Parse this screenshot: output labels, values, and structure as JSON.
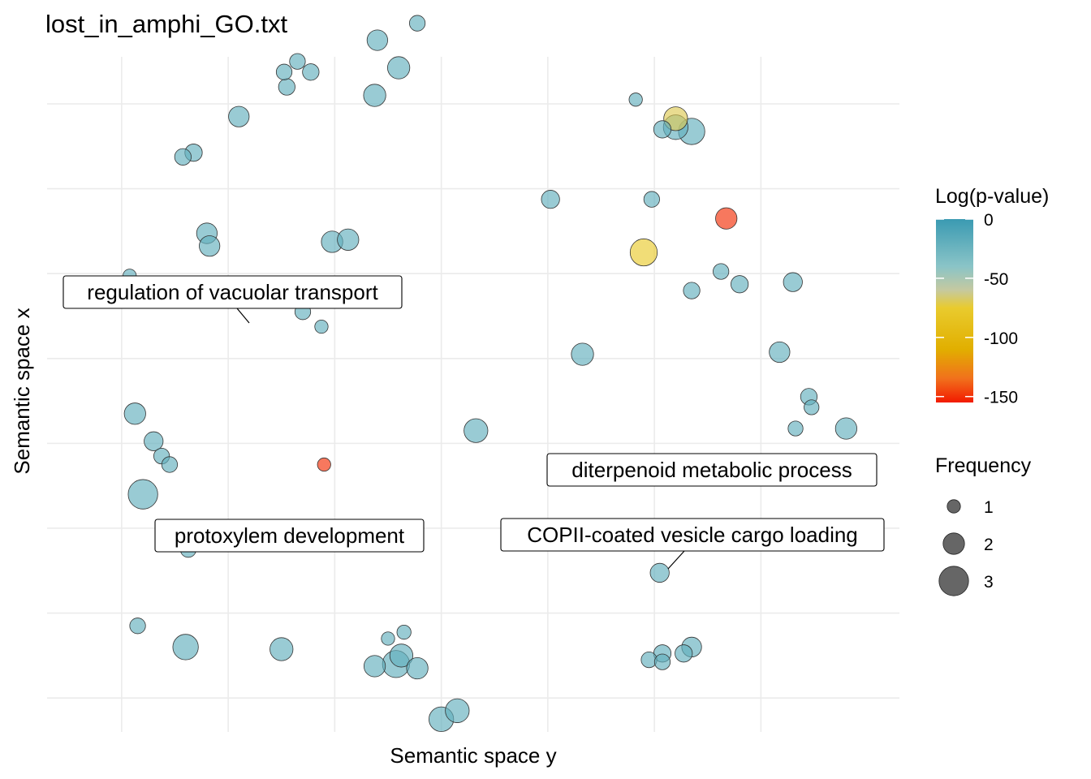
{
  "chart_data": {
    "type": "scatter",
    "title": "lost_in_amphi_GO.txt",
    "xlabel": "Semantic space y",
    "ylabel": "Semantic space x",
    "grid": true,
    "x_ticks": [
      -6,
      -4,
      -2,
      0,
      2,
      4,
      6
    ],
    "y_ticks": [
      -7,
      -5,
      -3,
      -1,
      1,
      3,
      5,
      7
    ],
    "xlim": [
      -7.4,
      8.6
    ],
    "ylim": [
      -7.8,
      8.3
    ],
    "tick_labels_shown": false,
    "color_scale": {
      "title": "Log(p-value)",
      "min": -155,
      "max": 0,
      "ticks": [
        0,
        -50,
        -100,
        -150
      ],
      "stops": [
        {
          "value": 0,
          "color": "#3a9ab2"
        },
        {
          "value": -40,
          "color": "#8ac4c7"
        },
        {
          "value": -60,
          "color": "#c5c9a0"
        },
        {
          "value": -75,
          "color": "#e9cb2e"
        },
        {
          "value": -110,
          "color": "#e1af00"
        },
        {
          "value": -135,
          "color": "#f1701c"
        },
        {
          "value": -155,
          "color": "#f21a00"
        }
      ]
    },
    "size_scale": {
      "title": "Frequency",
      "values": [
        1,
        2,
        3
      ]
    },
    "points": [
      {
        "x": -5.85,
        "y": 2.95,
        "log_p": -20,
        "freq": 1.0
      },
      {
        "x": -4.8,
        "y": -5.8,
        "log_p": -20,
        "freq": 2.5
      },
      {
        "x": -5.6,
        "y": -2.2,
        "log_p": -20,
        "freq": 3.0
      },
      {
        "x": -5.75,
        "y": -0.3,
        "log_p": -20,
        "freq": 2.0
      },
      {
        "x": -5.4,
        "y": -0.95,
        "log_p": -20,
        "freq": 1.7
      },
      {
        "x": -5.25,
        "y": -1.3,
        "log_p": -20,
        "freq": 1.3
      },
      {
        "x": -5.1,
        "y": -1.5,
        "log_p": -20,
        "freq": 1.3
      },
      {
        "x": -4.75,
        "y": -3.5,
        "log_p": -20,
        "freq": 1.3
      },
      {
        "x": -4.4,
        "y": 3.95,
        "log_p": -20,
        "freq": 1.9
      },
      {
        "x": -4.35,
        "y": 3.65,
        "log_p": -20,
        "freq": 1.9
      },
      {
        "x": -4.85,
        "y": 5.75,
        "log_p": -20,
        "freq": 1.4
      },
      {
        "x": -4.65,
        "y": 5.85,
        "log_p": -20,
        "freq": 1.5
      },
      {
        "x": -3.8,
        "y": 6.7,
        "log_p": -20,
        "freq": 1.9
      },
      {
        "x": -2.45,
        "y": 7.75,
        "log_p": -20,
        "freq": 1.4
      },
      {
        "x": -2.7,
        "y": 8.0,
        "log_p": -20,
        "freq": 1.3
      },
      {
        "x": -2.95,
        "y": 7.75,
        "log_p": -20,
        "freq": 1.3
      },
      {
        "x": -2.9,
        "y": 7.4,
        "log_p": -20,
        "freq": 1.4
      },
      {
        "x": -2.6,
        "y": 2.1,
        "log_p": -20,
        "freq": 1.3
      },
      {
        "x": -2.25,
        "y": 1.75,
        "log_p": -20,
        "freq": 1.0
      },
      {
        "x": -2.05,
        "y": 3.75,
        "log_p": -20,
        "freq": 2.0
      },
      {
        "x": -1.75,
        "y": 3.8,
        "log_p": -20,
        "freq": 2.0
      },
      {
        "x": -1.25,
        "y": 7.2,
        "log_p": -20,
        "freq": 2.1
      },
      {
        "x": -1.2,
        "y": 8.5,
        "log_p": -20,
        "freq": 1.9
      },
      {
        "x": -0.8,
        "y": 7.85,
        "log_p": -20,
        "freq": 2.1
      },
      {
        "x": -0.45,
        "y": 8.9,
        "log_p": -20,
        "freq": 1.3
      },
      {
        "x": -2.2,
        "y": -1.5,
        "log_p": -150,
        "freq": 1.0
      },
      {
        "x": -5.7,
        "y": -5.3,
        "log_p": -20,
        "freq": 1.3
      },
      {
        "x": -3.0,
        "y": -5.85,
        "log_p": -20,
        "freq": 2.2
      },
      {
        "x": -1.0,
        "y": -5.6,
        "log_p": -20,
        "freq": 1.0
      },
      {
        "x": -0.7,
        "y": -5.45,
        "log_p": -20,
        "freq": 1.1
      },
      {
        "x": -0.75,
        "y": -6.0,
        "log_p": -20,
        "freq": 2.2
      },
      {
        "x": -1.25,
        "y": -6.25,
        "log_p": -20,
        "freq": 2.0
      },
      {
        "x": -0.85,
        "y": -6.2,
        "log_p": -20,
        "freq": 2.7
      },
      {
        "x": -0.45,
        "y": -6.3,
        "log_p": -20,
        "freq": 2.0
      },
      {
        "x": 0.0,
        "y": -7.5,
        "log_p": -20,
        "freq": 2.4
      },
      {
        "x": 0.3,
        "y": -7.3,
        "log_p": -20,
        "freq": 2.3
      },
      {
        "x": 0.65,
        "y": -0.7,
        "log_p": -20,
        "freq": 2.3
      },
      {
        "x": 2.05,
        "y": 4.75,
        "log_p": -20,
        "freq": 1.6
      },
      {
        "x": 2.65,
        "y": 1.1,
        "log_p": -20,
        "freq": 2.1
      },
      {
        "x": 3.8,
        "y": 3.5,
        "log_p": -75,
        "freq": 2.7
      },
      {
        "x": 3.65,
        "y": 7.1,
        "log_p": -20,
        "freq": 1.0
      },
      {
        "x": 3.95,
        "y": 4.75,
        "log_p": -20,
        "freq": 1.3
      },
      {
        "x": 4.15,
        "y": 6.4,
        "log_p": -20,
        "freq": 1.5
      },
      {
        "x": 4.4,
        "y": 6.65,
        "log_p": -70,
        "freq": 2.3
      },
      {
        "x": 4.4,
        "y": 6.45,
        "log_p": -20,
        "freq": 2.4
      },
      {
        "x": 4.7,
        "y": 6.35,
        "log_p": -20,
        "freq": 2.6
      },
      {
        "x": 4.7,
        "y": 2.6,
        "log_p": -20,
        "freq": 1.4
      },
      {
        "x": 5.25,
        "y": 3.05,
        "log_p": -20,
        "freq": 1.3
      },
      {
        "x": 5.6,
        "y": 2.75,
        "log_p": -20,
        "freq": 1.5
      },
      {
        "x": 5.35,
        "y": 4.3,
        "log_p": -150,
        "freq": 2.0
      },
      {
        "x": 6.6,
        "y": 2.8,
        "log_p": -20,
        "freq": 1.7
      },
      {
        "x": 6.35,
        "y": 1.15,
        "log_p": -20,
        "freq": 1.9
      },
      {
        "x": 6.9,
        "y": 0.1,
        "log_p": -20,
        "freq": 1.4
      },
      {
        "x": 6.95,
        "y": -0.15,
        "log_p": -20,
        "freq": 1.2
      },
      {
        "x": 6.65,
        "y": -0.65,
        "log_p": -20,
        "freq": 1.2
      },
      {
        "x": 7.0,
        "y": -1.6,
        "log_p": -20,
        "freq": 2.1
      },
      {
        "x": 7.6,
        "y": -0.65,
        "log_p": -20,
        "freq": 2.0
      },
      {
        "x": 4.1,
        "y": -4.05,
        "log_p": -20,
        "freq": 1.7
      },
      {
        "x": 3.9,
        "y": -6.1,
        "log_p": -20,
        "freq": 1.3
      },
      {
        "x": 4.15,
        "y": -6.15,
        "log_p": -20,
        "freq": 1.3
      },
      {
        "x": 4.15,
        "y": -5.95,
        "log_p": -20,
        "freq": 1.5
      },
      {
        "x": 4.55,
        "y": -5.95,
        "log_p": -20,
        "freq": 1.5
      },
      {
        "x": 4.7,
        "y": -5.8,
        "log_p": -20,
        "freq": 1.8
      }
    ],
    "annotations": [
      {
        "text": "regulation of vacuolar transport"
      },
      {
        "text": "protoxylem development"
      },
      {
        "text": "diterpenoid metabolic process"
      },
      {
        "text": "COPII-coated vesicle cargo loading"
      }
    ]
  }
}
